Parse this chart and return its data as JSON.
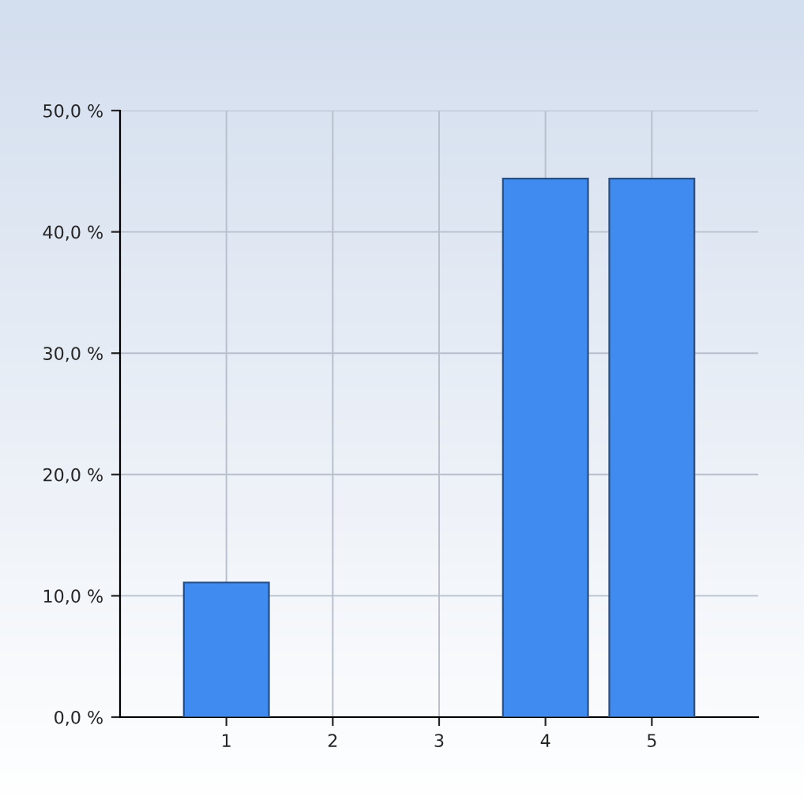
{
  "chart_data": {
    "type": "bar",
    "categories": [
      "1",
      "2",
      "3",
      "4",
      "5"
    ],
    "values": [
      11.1,
      0,
      0,
      44.4,
      44.4
    ],
    "color": "#3f8bef",
    "ylim": [
      0,
      50
    ],
    "yticks": [
      {
        "value": 0,
        "label": "0,0 %"
      },
      {
        "value": 10,
        "label": "10,0 %"
      },
      {
        "value": 20,
        "label": "20,0 %"
      },
      {
        "value": 30,
        "label": "30,0 %"
      },
      {
        "value": 40,
        "label": "40,0 %"
      },
      {
        "value": 50,
        "label": "50,0 %"
      }
    ],
    "grid": true,
    "legend": false
  }
}
